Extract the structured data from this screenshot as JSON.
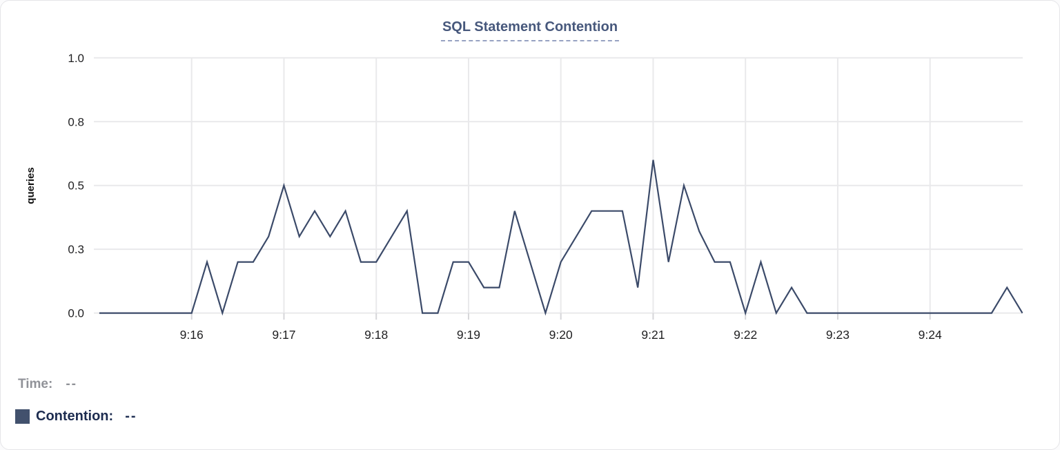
{
  "title": "SQL Statement Contention",
  "colors": {
    "title": "#47587c",
    "title_underline": "#97a2c2",
    "line": "#3b4a69",
    "grid": "#e9e9eb",
    "tick": "#d6d6d9",
    "axis_text": "#1f1f21",
    "ylabel_text": "#111111",
    "legend_time_text": "#909298",
    "legend_contention_text": "#1d2c50",
    "swatch": "#42516d",
    "card_border": "#e5e5e8",
    "card_bg": "#ffffff"
  },
  "legend": {
    "time_label": "Time:",
    "time_value": "--",
    "contention_label": "Contention:",
    "contention_value": "--"
  },
  "chart_data": {
    "type": "line",
    "title": "SQL Statement Contention",
    "xlabel": "",
    "ylabel": "queries",
    "ylim": [
      0,
      1.0
    ],
    "grid": true,
    "legend_position": "bottom-left",
    "y_ticks": [
      {
        "label": "0.0",
        "value": 0
      },
      {
        "label": "0.3",
        "value": 0.25
      },
      {
        "label": "0.5",
        "value": 0.5
      },
      {
        "label": "0.8",
        "value": 0.75
      },
      {
        "label": "1.0",
        "value": 1.0
      }
    ],
    "x_ticks": [
      "9:16",
      "9:17",
      "9:18",
      "9:19",
      "9:20",
      "9:21",
      "9:22",
      "9:23",
      "9:24"
    ],
    "x_range": [
      "9:15:00",
      "9:25:00"
    ],
    "sample_interval_seconds": 10,
    "series": [
      {
        "name": "Contention",
        "points": [
          [
            "9:15:00",
            0
          ],
          [
            "9:15:10",
            0
          ],
          [
            "9:15:20",
            0
          ],
          [
            "9:15:30",
            0
          ],
          [
            "9:15:40",
            0
          ],
          [
            "9:15:50",
            0
          ],
          [
            "9:16:00",
            0
          ],
          [
            "9:16:10",
            0.2
          ],
          [
            "9:16:20",
            0
          ],
          [
            "9:16:30",
            0.2
          ],
          [
            "9:16:40",
            0.2
          ],
          [
            "9:16:50",
            0.3
          ],
          [
            "9:17:00",
            0.5
          ],
          [
            "9:17:10",
            0.3
          ],
          [
            "9:17:20",
            0.4
          ],
          [
            "9:17:30",
            0.3
          ],
          [
            "9:17:40",
            0.4
          ],
          [
            "9:17:50",
            0.2
          ],
          [
            "9:18:00",
            0.2
          ],
          [
            "9:18:10",
            0.3
          ],
          [
            "9:18:20",
            0.4
          ],
          [
            "9:18:30",
            0
          ],
          [
            "9:18:40",
            0
          ],
          [
            "9:18:50",
            0.2
          ],
          [
            "9:19:00",
            0.2
          ],
          [
            "9:19:10",
            0.1
          ],
          [
            "9:19:20",
            0.1
          ],
          [
            "9:19:30",
            0.4
          ],
          [
            "9:19:40",
            0.2
          ],
          [
            "9:19:50",
            0
          ],
          [
            "9:20:00",
            0.2
          ],
          [
            "9:20:10",
            0.3
          ],
          [
            "9:20:20",
            0.4
          ],
          [
            "9:20:30",
            0.4
          ],
          [
            "9:20:40",
            0.4
          ],
          [
            "9:20:50",
            0.1
          ],
          [
            "9:21:00",
            0.6
          ],
          [
            "9:21:10",
            0.2
          ],
          [
            "9:21:20",
            0.5
          ],
          [
            "9:21:30",
            0.32
          ],
          [
            "9:21:40",
            0.2
          ],
          [
            "9:21:50",
            0.2
          ],
          [
            "9:22:00",
            0
          ],
          [
            "9:22:10",
            0.2
          ],
          [
            "9:22:20",
            0
          ],
          [
            "9:22:30",
            0.1
          ],
          [
            "9:22:40",
            0
          ],
          [
            "9:22:50",
            0
          ],
          [
            "9:23:00",
            0
          ],
          [
            "9:23:10",
            0
          ],
          [
            "9:23:20",
            0
          ],
          [
            "9:23:30",
            0
          ],
          [
            "9:23:40",
            0
          ],
          [
            "9:23:50",
            0
          ],
          [
            "9:24:00",
            0
          ],
          [
            "9:24:10",
            0
          ],
          [
            "9:24:20",
            0
          ],
          [
            "9:24:30",
            0
          ],
          [
            "9:24:40",
            0
          ],
          [
            "9:24:50",
            0.1
          ],
          [
            "9:25:00",
            0
          ]
        ]
      }
    ]
  }
}
